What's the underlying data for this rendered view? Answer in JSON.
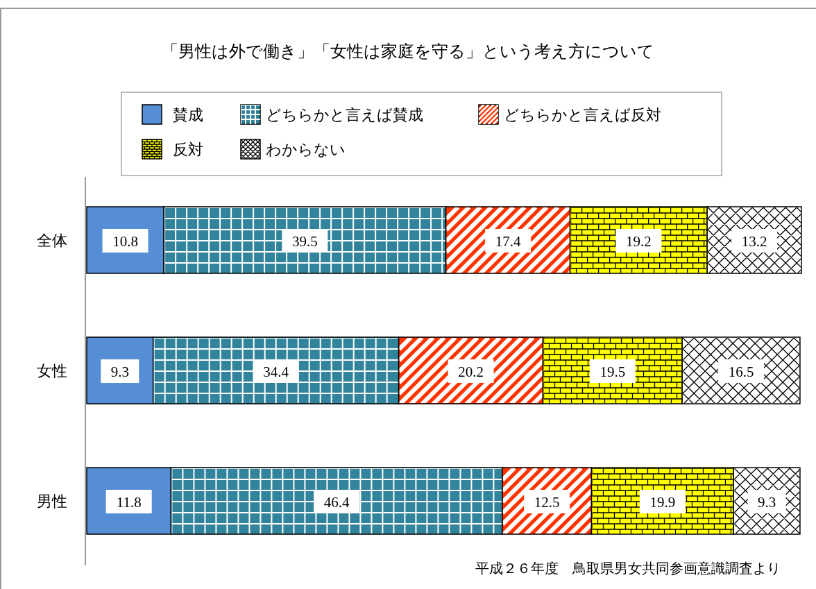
{
  "chart_data": {
    "type": "bar",
    "orientation": "horizontal",
    "stacked": true,
    "title": "「男性は外で働き」「女性は家庭を守る」という考え方について",
    "categories": [
      "全体",
      "女性",
      "男性"
    ],
    "series": [
      {
        "name": "賛成",
        "color": "#558ed5",
        "values": [
          10.8,
          9.3,
          11.8
        ]
      },
      {
        "name": "どちらかと言えば賛成",
        "color": "#31849b",
        "values": [
          39.5,
          34.4,
          46.4
        ]
      },
      {
        "name": "どちらかと言えば反対",
        "color": "#ff3300",
        "values": [
          17.4,
          20.2,
          12.5
        ]
      },
      {
        "name": "反対",
        "color": "#ffff00",
        "values": [
          19.2,
          19.5,
          19.9
        ]
      },
      {
        "name": "わからない",
        "color": "#ffffff",
        "values": [
          13.2,
          16.5,
          9.3
        ]
      }
    ],
    "data_labels": true,
    "legend": "top",
    "annotations": [
      "平成２６年度　鳥取県男女共同参画意識調査より"
    ]
  }
}
